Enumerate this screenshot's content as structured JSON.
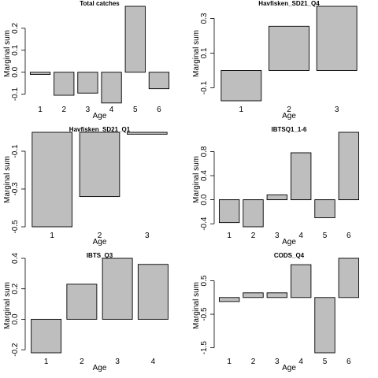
{
  "chart_data": [
    {
      "type": "bar",
      "title": "Total catches",
      "xlabel": "Age",
      "ylabel": "Marginal sum",
      "categories": [
        "1",
        "2",
        "3",
        "4",
        "5",
        "6"
      ],
      "values": [
        -0.01,
        -0.105,
        -0.095,
        -0.14,
        0.3,
        -0.075
      ],
      "ylim": [
        -0.13,
        0.3
      ],
      "yticks": [
        -0.1,
        0.0,
        0.1,
        0.2
      ],
      "ytick_labels": [
        "-0.1",
        "0.0",
        "0.1",
        "0.2"
      ]
    },
    {
      "type": "bar",
      "title": "Havfisken_SD21_Q4",
      "xlabel": "Age",
      "ylabel": "Marginal sum",
      "categories": [
        "1",
        "2",
        "3"
      ],
      "values": [
        -0.175,
        0.255,
        0.37
      ],
      "ylim": [
        -0.175,
        0.37
      ],
      "yticks": [
        -0.1,
        0.1,
        0.3
      ],
      "ytick_labels": [
        "-0.1",
        "0.1",
        "0.3"
      ]
    },
    {
      "type": "bar",
      "title": "Havfisken_SD21_Q1",
      "xlabel": "Age",
      "ylabel": "Marginal sum",
      "categories": [
        "1",
        "2",
        "3"
      ],
      "values": [
        -0.5,
        -0.34,
        -0.01
      ],
      "ylim": [
        -0.5,
        0.0
      ],
      "yticks": [
        -0.5,
        -0.3,
        -0.1
      ],
      "ytick_labels": [
        "-0.5",
        "-0.3",
        "-0.1"
      ]
    },
    {
      "type": "bar",
      "title": "IBTSQ1_1-6",
      "xlabel": "Age",
      "ylabel": "Marginal sum",
      "categories": [
        "1",
        "2",
        "3",
        "4",
        "5",
        "6"
      ],
      "values": [
        -0.38,
        -0.45,
        0.08,
        0.78,
        -0.3,
        1.12
      ],
      "ylim": [
        -0.45,
        1.12
      ],
      "yticks": [
        -0.4,
        0.0,
        0.4,
        0.8
      ],
      "ytick_labels": [
        "-0.4",
        "0.0",
        "0.4",
        "0.8"
      ]
    },
    {
      "type": "bar",
      "title": "IBTS_Q3",
      "xlabel": "Age",
      "ylabel": "Marginal sum",
      "categories": [
        "1",
        "2",
        "3",
        "4"
      ],
      "values": [
        -0.22,
        0.23,
        0.4,
        0.36
      ],
      "ylim": [
        -0.22,
        0.4
      ],
      "yticks": [
        -0.2,
        0.0,
        0.2,
        0.4
      ],
      "ytick_labels": [
        "-0.2",
        "0.0",
        "0.2",
        "0.4"
      ]
    },
    {
      "type": "bar",
      "title": "CODS_Q4",
      "xlabel": "Age",
      "ylabel": "Marginal sum",
      "categories": [
        "1",
        "2",
        "3",
        "4",
        "5",
        "6"
      ],
      "values": [
        -0.12,
        0.14,
        0.14,
        0.98,
        -1.65,
        1.17
      ],
      "ylim": [
        -1.65,
        1.17
      ],
      "yticks": [
        -1.5,
        -0.5,
        0.5
      ],
      "ytick_labels": [
        "-1.5",
        "-0.5",
        "0.5"
      ]
    }
  ]
}
